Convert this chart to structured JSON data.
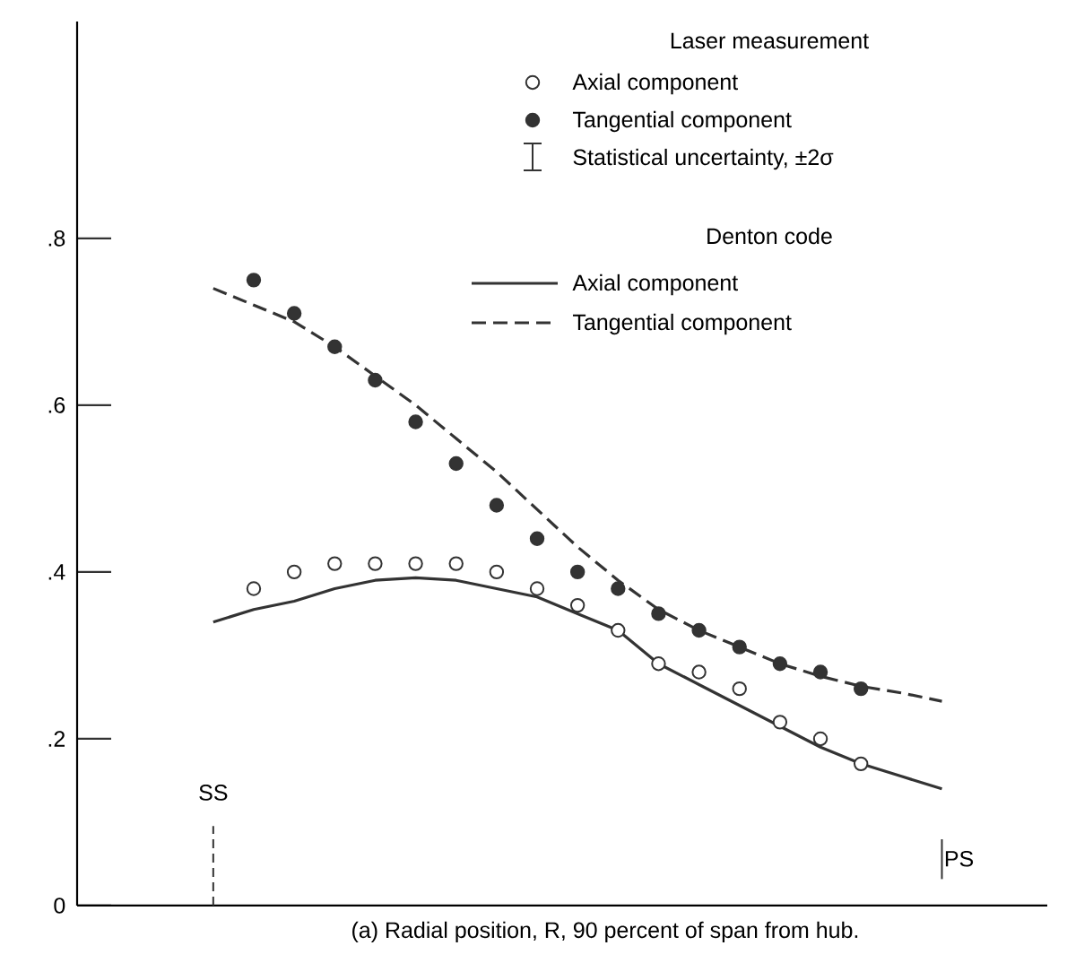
{
  "chart_data": {
    "type": "scatter",
    "xlabel": "(a) Radial position, R, 90 percent of span from hub.",
    "annotations": [
      "Laser measurement",
      "Statistical uncertainty, ±2σ",
      "Denton code",
      "SS",
      "PS"
    ],
    "categories": [
      null,
      null,
      null,
      null,
      null,
      null,
      null,
      null,
      null,
      null,
      null,
      null,
      null,
      null,
      null,
      null,
      null,
      null,
      null
    ],
    "ylim": [
      0,
      1.06
    ],
    "yticks": [
      {
        "value": 0,
        "label": "0"
      },
      {
        "value": 0.2,
        "label": ".2"
      },
      {
        "value": 0.4,
        "label": ".4"
      },
      {
        "value": 0.6,
        "label": ".6"
      },
      {
        "value": 0.8,
        "label": ".8"
      }
    ],
    "tick_labels": "y",
    "grid": false,
    "legend": "top right",
    "series": [
      {
        "name": "Axial component",
        "type": "scatter",
        "marker": "circle",
        "color": "#333333",
        "values": [
          null,
          0.38,
          0.4,
          0.41,
          0.41,
          0.41,
          0.41,
          0.4,
          0.38,
          0.36,
          0.33,
          0.29,
          0.28,
          0.26,
          0.22,
          0.2,
          0.17,
          null,
          null
        ]
      },
      {
        "name": "Tangential component",
        "type": "scatter",
        "marker": "circle",
        "color": "#333333",
        "values": [
          null,
          0.75,
          0.71,
          0.67,
          0.63,
          0.58,
          0.53,
          0.48,
          0.44,
          0.4,
          0.38,
          0.35,
          0.33,
          0.31,
          0.29,
          0.28,
          0.26,
          null,
          null
        ]
      },
      {
        "name": "Axial component",
        "type": "line",
        "line_style": "solid",
        "marker": "none",
        "color": "#333333",
        "values": [
          0.34,
          0.355,
          0.365,
          0.38,
          0.39,
          0.393,
          0.39,
          0.38,
          0.37,
          0.35,
          0.33,
          0.29,
          0.265,
          0.24,
          0.215,
          0.19,
          0.17,
          0.155,
          0.14
        ]
      },
      {
        "name": "Tangential component",
        "type": "line",
        "line_style": "dashed",
        "marker": "none",
        "color": "#333333",
        "values": [
          0.74,
          0.72,
          0.7,
          0.67,
          0.635,
          0.6,
          0.56,
          0.52,
          0.475,
          0.43,
          0.39,
          0.355,
          0.33,
          0.31,
          0.29,
          0.275,
          0.263,
          0.255,
          0.245
        ]
      }
    ]
  }
}
